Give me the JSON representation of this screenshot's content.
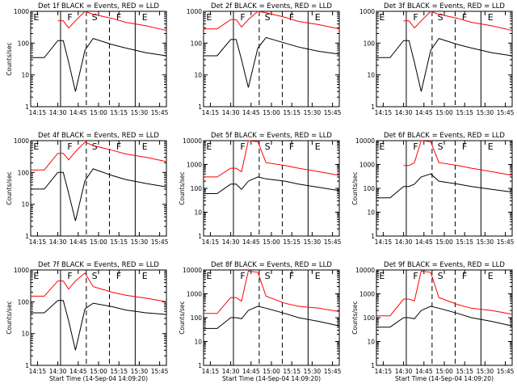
{
  "page": {
    "width": 640,
    "height": 480
  },
  "chart_data": [
    {
      "type": "line",
      "title": "Det 1f BLACK = Events, RED = LLD",
      "xlabel": "",
      "ylabel": "Counts/sec",
      "ylim": [
        1,
        1000
      ],
      "yticks": [
        "1",
        "10",
        "100",
        "1000"
      ],
      "xticks": [
        "14:15",
        "14:30",
        "14:45",
        "15:00",
        "15:15",
        "15:30",
        "15:45"
      ],
      "events": [
        "E",
        "F",
        "S",
        "F",
        "E"
      ],
      "series": [
        {
          "color": "#000000",
          "values": [
            35,
            35,
            120,
            120,
            25,
            3,
            60,
            140,
            90,
            70,
            50,
            40
          ]
        },
        {
          "color": "#ff0000",
          "values": [
            null,
            null,
            500,
            500,
            300,
            500,
            1000,
            800,
            600,
            450,
            350,
            250
          ]
        }
      ]
    },
    {
      "type": "line",
      "title": "Det 2f BLACK = Events, RED = LLD",
      "xlabel": "",
      "ylabel": "",
      "ylim": [
        1,
        1000
      ],
      "yticks": [
        "1",
        "10",
        "100",
        "1000"
      ],
      "xticks": [
        "14:15",
        "14:30",
        "14:45",
        "15:00",
        "15:15",
        "15:30",
        "15:45"
      ],
      "events": [
        "E",
        "F",
        "S",
        "F",
        "E"
      ],
      "series": [
        {
          "color": "#000000",
          "values": [
            40,
            40,
            130,
            130,
            30,
            4,
            70,
            150,
            100,
            75,
            55,
            45
          ]
        },
        {
          "color": "#ff0000",
          "values": [
            280,
            280,
            550,
            550,
            320,
            550,
            1000,
            900,
            650,
            480,
            380,
            280
          ]
        }
      ]
    },
    {
      "type": "line",
      "title": "Det 3f BLACK = Events, RED = LLD",
      "xlabel": "",
      "ylabel": "",
      "ylim": [
        1,
        1000
      ],
      "yticks": [
        "1",
        "10",
        "100",
        "1000"
      ],
      "xticks": [
        "14:15",
        "14:30",
        "14:45",
        "15:00",
        "15:15",
        "15:30",
        "15:45"
      ],
      "events": [
        "E",
        "F",
        "S",
        "F",
        "E"
      ],
      "series": [
        {
          "color": "#000000",
          "values": [
            35,
            35,
            120,
            120,
            25,
            3,
            60,
            140,
            90,
            70,
            50,
            40
          ]
        },
        {
          "color": "#ff0000",
          "values": [
            null,
            null,
            500,
            500,
            300,
            500,
            1000,
            800,
            600,
            450,
            350,
            250
          ]
        }
      ]
    },
    {
      "type": "line",
      "title": "Det 4f BLACK = Events, RED = LLD",
      "xlabel": "",
      "ylabel": "Counts/sec",
      "ylim": [
        1,
        1000
      ],
      "yticks": [
        "1",
        "10",
        "100",
        "1000"
      ],
      "xticks": [
        "14:15",
        "14:30",
        "14:45",
        "15:00",
        "15:15",
        "15:30",
        "15:45"
      ],
      "events": [
        "E",
        "F",
        "S",
        "F",
        "E"
      ],
      "series": [
        {
          "color": "#000000",
          "values": [
            30,
            30,
            100,
            100,
            22,
            3,
            55,
            130,
            80,
            60,
            45,
            35
          ]
        },
        {
          "color": "#ff0000",
          "values": [
            120,
            120,
            400,
            400,
            250,
            450,
            900,
            700,
            500,
            380,
            300,
            220
          ]
        }
      ]
    },
    {
      "type": "line",
      "title": "Det 5f BLACK = Events, RED = LLD",
      "xlabel": "",
      "ylabel": "Counts/sec",
      "ylim": [
        1,
        10000
      ],
      "yticks": [
        "1",
        "10",
        "100",
        "1000",
        "10000"
      ],
      "xticks": [
        "14:15",
        "14:30",
        "14:45",
        "15:00",
        "15:15",
        "15:30",
        "15:45"
      ],
      "events": [
        "E",
        "F",
        "S",
        "F",
        "E"
      ],
      "series": [
        {
          "color": "#000000",
          "values": [
            60,
            60,
            150,
            150,
            90,
            200,
            300,
            250,
            200,
            150,
            110,
            80
          ]
        },
        {
          "color": "#ff0000",
          "values": [
            300,
            300,
            700,
            700,
            500,
            10000,
            9000,
            1200,
            900,
            700,
            500,
            350
          ]
        }
      ]
    },
    {
      "type": "line",
      "title": "Det 6f BLACK = Events, RED = LLD",
      "xlabel": "",
      "ylabel": "Counts/sec",
      "ylim": [
        1,
        10000
      ],
      "yticks": [
        "1",
        "10",
        "100",
        "1000",
        "10000"
      ],
      "xticks": [
        "14:15",
        "14:30",
        "14:45",
        "15:00",
        "15:15",
        "15:30",
        "15:45"
      ],
      "events": [
        "E",
        "F",
        "S",
        "F",
        "E"
      ],
      "series": [
        {
          "color": "#000000",
          "values": [
            40,
            40,
            120,
            120,
            150,
            300,
            400,
            200,
            150,
            120,
            90,
            70
          ]
        },
        {
          "color": "#ff0000",
          "values": [
            null,
            null,
            900,
            900,
            1200,
            10000,
            9000,
            1200,
            900,
            700,
            500,
            350
          ]
        }
      ]
    },
    {
      "type": "line",
      "title": "Det 7f BLACK = Events, RED = LLD",
      "xlabel": "Start Time (14-Sep-04 14:09:20)",
      "ylabel": "Counts/sec",
      "ylim": [
        1,
        1000
      ],
      "yticks": [
        "1",
        "10",
        "100",
        "1000"
      ],
      "xticks": [
        "14:15",
        "14:30",
        "14:45",
        "15:00",
        "15:15",
        "15:30",
        "15:45"
      ],
      "events": [
        "E",
        "F",
        "S",
        "F",
        "E"
      ],
      "series": [
        {
          "color": "#000000",
          "values": [
            45,
            45,
            110,
            110,
            25,
            3,
            60,
            90,
            70,
            55,
            45,
            40
          ]
        },
        {
          "color": "#ff0000",
          "values": [
            150,
            150,
            450,
            450,
            250,
            450,
            800,
            300,
            200,
            160,
            130,
            100
          ]
        }
      ]
    },
    {
      "type": "line",
      "title": "Det 8f BLACK = Events, RED = LLD",
      "xlabel": "Start Time (14-Sep-04 14:09:20)",
      "ylabel": "Counts/sec",
      "ylim": [
        1,
        10000
      ],
      "yticks": [
        "1",
        "10",
        "100",
        "1000",
        "10000"
      ],
      "xticks": [
        "14:15",
        "14:30",
        "14:45",
        "15:00",
        "15:15",
        "15:30",
        "15:45"
      ],
      "events": [
        "E",
        "F",
        "S",
        "F",
        "E"
      ],
      "series": [
        {
          "color": "#000000",
          "values": [
            35,
            35,
            100,
            100,
            90,
            200,
            300,
            250,
            150,
            100,
            70,
            45
          ]
        },
        {
          "color": "#ff0000",
          "values": [
            150,
            150,
            700,
            700,
            500,
            9000,
            8000,
            800,
            400,
            300,
            250,
            180
          ]
        }
      ]
    },
    {
      "type": "line",
      "title": "Det 9f BLACK = Events, RED = LLD",
      "xlabel": "Start Time (14-Sep-04 14:09:20)",
      "ylabel": "Counts/sec",
      "ylim": [
        1,
        10000
      ],
      "yticks": [
        "1",
        "10",
        "100",
        "1000",
        "10000"
      ],
      "xticks": [
        "14:15",
        "14:30",
        "14:45",
        "15:00",
        "15:15",
        "15:30",
        "15:45"
      ],
      "events": [
        "E",
        "F",
        "S",
        "F",
        "E"
      ],
      "series": [
        {
          "color": "#000000",
          "values": [
            40,
            40,
            100,
            100,
            90,
            200,
            300,
            250,
            150,
            100,
            70,
            45
          ]
        },
        {
          "color": "#ff0000",
          "values": [
            120,
            120,
            600,
            600,
            500,
            9000,
            8000,
            700,
            350,
            250,
            200,
            140
          ]
        }
      ]
    }
  ]
}
